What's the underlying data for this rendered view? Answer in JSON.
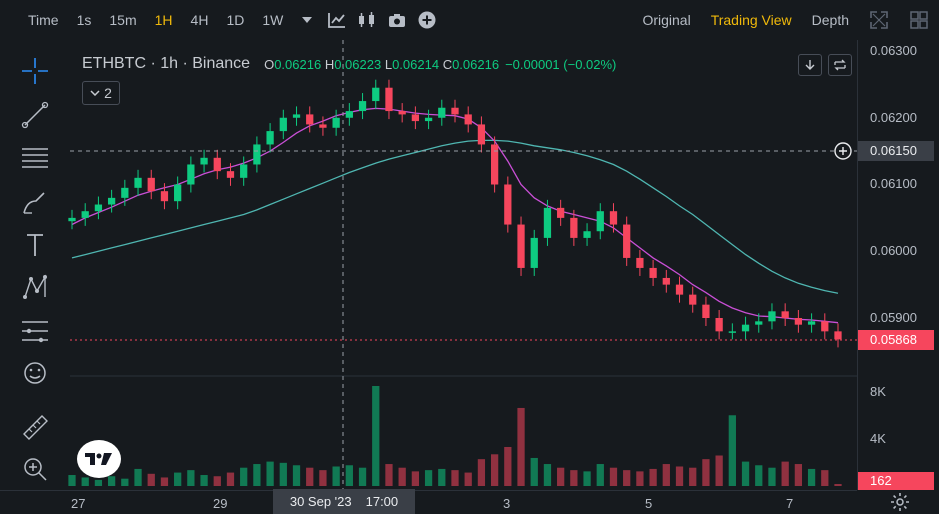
{
  "toolbar": {
    "time_label": "Time",
    "timeframes": [
      "1s",
      "15m",
      "1H",
      "4H",
      "1D",
      "1W"
    ],
    "active_timeframe": "1H",
    "views": [
      "Original",
      "Trading View",
      "Depth"
    ],
    "active_view": "Trading View"
  },
  "legend": {
    "symbol": "ETHBTC · 1h · Binance",
    "open_label": "O",
    "open": "0.06216",
    "high_label": "H",
    "high": "0.06223",
    "low_label": "L",
    "low": "0.06214",
    "close_label": "C",
    "close": "0.06216",
    "change": "−0.00001 (−0.02%)",
    "collapsed_count": "2"
  },
  "price_axis": {
    "labels": [
      "0.06300",
      "0.06200",
      "0.06100",
      "0.06000",
      "0.05900"
    ],
    "crosshair_price": "0.06150",
    "last_price": "0.05868"
  },
  "volume_axis": {
    "labels": [
      "8K",
      "4K"
    ],
    "last_volume": "162"
  },
  "time_axis": {
    "labels": [
      "27",
      "29",
      "3",
      "5",
      "7"
    ],
    "cursor_date": "30 Sep '23",
    "cursor_time": "17:00"
  },
  "colors": {
    "up": "#0ecb81",
    "down": "#f6465d",
    "ma_fast": "#c94fd6",
    "ma_slow": "#4fb6b1",
    "accent": "#f0b90b",
    "background": "#161a1e"
  },
  "chart_data": {
    "type": "candlestick",
    "pair": "ETHBTC",
    "interval": "1h",
    "exchange": "Binance",
    "ylim": [
      0.0585,
      0.063
    ],
    "x_ticks": [
      "27",
      "29",
      "3",
      "5",
      "7"
    ],
    "close_series": [
      0.0605,
      0.0606,
      0.0607,
      0.0608,
      0.06095,
      0.0611,
      0.0609,
      0.06075,
      0.061,
      0.0613,
      0.0614,
      0.0612,
      0.0611,
      0.0613,
      0.0616,
      0.0618,
      0.062,
      0.06205,
      0.0619,
      0.06185,
      0.062,
      0.0621,
      0.06225,
      0.06245,
      0.0621,
      0.06205,
      0.06195,
      0.062,
      0.06215,
      0.06205,
      0.0619,
      0.0616,
      0.061,
      0.0604,
      0.05975,
      0.0602,
      0.06065,
      0.0605,
      0.0602,
      0.0603,
      0.0606,
      0.0604,
      0.0599,
      0.05975,
      0.0596,
      0.0595,
      0.05935,
      0.0592,
      0.059,
      0.0588,
      0.0588,
      0.0589,
      0.05895,
      0.0591,
      0.059,
      0.0589,
      0.05895,
      0.0588,
      0.05868
    ],
    "ma_fast": [
      0.0604,
      0.0605,
      0.06058,
      0.06066,
      0.06075,
      0.06084,
      0.0609,
      0.06095,
      0.061,
      0.06108,
      0.06116,
      0.06122,
      0.06126,
      0.06132,
      0.0614,
      0.0615,
      0.06163,
      0.06177,
      0.06188,
      0.06195,
      0.06203,
      0.06208,
      0.06212,
      0.06214,
      0.06213,
      0.0621,
      0.06207,
      0.06205,
      0.06204,
      0.06203,
      0.06198,
      0.06185,
      0.06165,
      0.06135,
      0.061,
      0.0608,
      0.06068,
      0.0606,
      0.06055,
      0.0605,
      0.06045,
      0.06035,
      0.0602,
      0.06005,
      0.0599,
      0.05978,
      0.05965,
      0.0595,
      0.05938,
      0.05925,
      0.05915,
      0.05908,
      0.05903,
      0.05902,
      0.059,
      0.05898,
      0.05897,
      0.05895,
      0.05893
    ],
    "ma_slow": [
      0.0599,
      0.05995,
      0.06,
      0.06005,
      0.0601,
      0.06015,
      0.0602,
      0.06025,
      0.0603,
      0.06035,
      0.0604,
      0.06045,
      0.0605,
      0.06055,
      0.06062,
      0.0607,
      0.06078,
      0.06086,
      0.06094,
      0.06102,
      0.0611,
      0.06118,
      0.06125,
      0.06132,
      0.06138,
      0.06143,
      0.06148,
      0.06153,
      0.06158,
      0.06162,
      0.06165,
      0.06166,
      0.06166,
      0.06165,
      0.06162,
      0.06158,
      0.06155,
      0.06152,
      0.06148,
      0.06143,
      0.06137,
      0.0613,
      0.0612,
      0.06108,
      0.06095,
      0.06082,
      0.06068,
      0.06055,
      0.0604,
      0.06025,
      0.0601,
      0.05995,
      0.05982,
      0.0597,
      0.0596,
      0.05952,
      0.05946,
      0.05941,
      0.05937
    ],
    "volume": [
      900,
      700,
      500,
      800,
      600,
      1400,
      1000,
      700,
      1100,
      1300,
      900,
      800,
      1100,
      1500,
      1800,
      2000,
      1900,
      1700,
      1500,
      1300,
      1600,
      1700,
      1500,
      8200,
      1800,
      1500,
      1200,
      1300,
      1400,
      1300,
      1100,
      2200,
      2600,
      3200,
      6400,
      2300,
      1800,
      1500,
      1300,
      1200,
      1800,
      1500,
      1300,
      1200,
      1400,
      1800,
      1600,
      1500,
      2200,
      2500,
      5800,
      2000,
      1700,
      1500,
      2000,
      1800,
      1400,
      1300,
      162
    ],
    "crosshair": {
      "price": 0.0615,
      "time": "30 Sep '23 17:00"
    },
    "last_price": 0.05868
  }
}
